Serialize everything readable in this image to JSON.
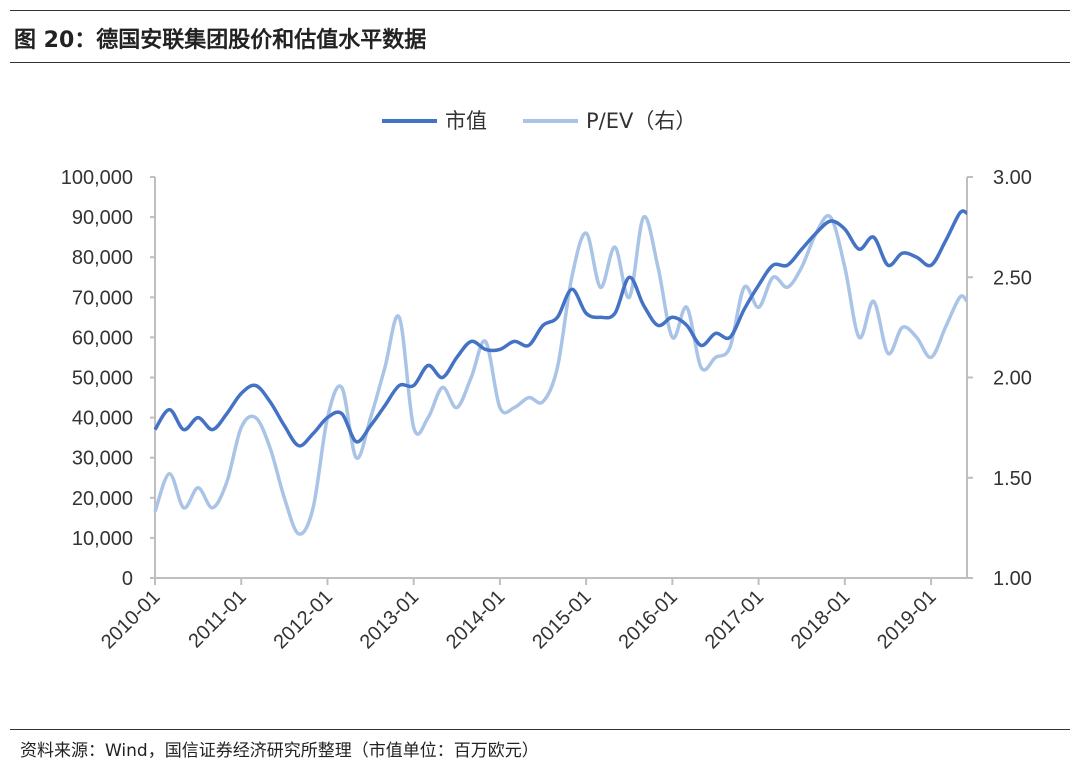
{
  "figure": {
    "title": "图 20：德国安联集团股价和估值水平数据",
    "source": "资料来源：Wind，国信证券经济研究所整理（市值单位：百万欧元）"
  },
  "colors": {
    "series1": "#4472c4",
    "series2": "#a9c4e6",
    "axis": "#bfbfbf"
  },
  "chart_data": {
    "type": "line",
    "x_ticks": [
      "2010-01",
      "2011-01",
      "2012-01",
      "2013-01",
      "2014-01",
      "2015-01",
      "2016-01",
      "2017-01",
      "2018-01",
      "2019-01"
    ],
    "x_range": [
      "2010-01",
      "2019-06"
    ],
    "y_left": {
      "min": 0,
      "max": 100000,
      "ticks": [
        "0",
        "10,000",
        "20,000",
        "30,000",
        "40,000",
        "50,000",
        "60,000",
        "70,000",
        "80,000",
        "90,000",
        "100,000"
      ]
    },
    "y_right": {
      "min": 1.0,
      "max": 3.0,
      "ticks": [
        "1.00",
        "1.50",
        "2.00",
        "2.50",
        "3.00"
      ]
    },
    "grid": false,
    "legend_position": "top-center",
    "series": [
      {
        "name": "市值",
        "axis": "left",
        "x": [
          "2010-01",
          "2010-03",
          "2010-05",
          "2010-07",
          "2010-09",
          "2010-11",
          "2011-01",
          "2011-03",
          "2011-05",
          "2011-07",
          "2011-09",
          "2011-11",
          "2012-01",
          "2012-03",
          "2012-05",
          "2012-07",
          "2012-09",
          "2012-11",
          "2013-01",
          "2013-03",
          "2013-05",
          "2013-07",
          "2013-09",
          "2013-11",
          "2014-01",
          "2014-03",
          "2014-05",
          "2014-07",
          "2014-09",
          "2014-11",
          "2015-01",
          "2015-03",
          "2015-05",
          "2015-07",
          "2015-09",
          "2015-11",
          "2016-01",
          "2016-03",
          "2016-05",
          "2016-07",
          "2016-09",
          "2016-11",
          "2017-01",
          "2017-03",
          "2017-05",
          "2017-07",
          "2017-09",
          "2017-11",
          "2018-01",
          "2018-03",
          "2018-05",
          "2018-07",
          "2018-09",
          "2018-11",
          "2019-01",
          "2019-03",
          "2019-05",
          "2019-06"
        ],
        "values": [
          37000,
          42000,
          37000,
          40000,
          37000,
          41000,
          46000,
          48000,
          44000,
          38000,
          33000,
          36000,
          40000,
          41000,
          34000,
          38000,
          43000,
          48000,
          48000,
          53000,
          50000,
          55000,
          59000,
          57000,
          57000,
          59000,
          58000,
          63000,
          65000,
          72000,
          66000,
          65000,
          66000,
          75000,
          68000,
          63000,
          65000,
          63000,
          58000,
          61000,
          60000,
          67000,
          73000,
          78000,
          78000,
          82000,
          86000,
          89000,
          87000,
          82000,
          85000,
          78000,
          81000,
          80000,
          78000,
          84000,
          91000,
          91000
        ]
      },
      {
        "name": "P/EV（右）",
        "axis": "right",
        "x": [
          "2010-01",
          "2010-03",
          "2010-05",
          "2010-07",
          "2010-09",
          "2010-11",
          "2011-01",
          "2011-03",
          "2011-05",
          "2011-07",
          "2011-09",
          "2011-11",
          "2012-01",
          "2012-03",
          "2012-05",
          "2012-07",
          "2012-09",
          "2012-11",
          "2013-01",
          "2013-03",
          "2013-05",
          "2013-07",
          "2013-09",
          "2013-11",
          "2014-01",
          "2014-03",
          "2014-05",
          "2014-07",
          "2014-09",
          "2014-11",
          "2015-01",
          "2015-03",
          "2015-05",
          "2015-07",
          "2015-09",
          "2015-11",
          "2016-01",
          "2016-03",
          "2016-05",
          "2016-07",
          "2016-09",
          "2016-11",
          "2017-01",
          "2017-03",
          "2017-05",
          "2017-07",
          "2017-09",
          "2017-11",
          "2018-01",
          "2018-03",
          "2018-05",
          "2018-07",
          "2018-09",
          "2018-11",
          "2019-01",
          "2019-03",
          "2019-05",
          "2019-06"
        ],
        "values": [
          1.33,
          1.52,
          1.35,
          1.45,
          1.35,
          1.48,
          1.75,
          1.8,
          1.65,
          1.4,
          1.22,
          1.35,
          1.8,
          1.95,
          1.6,
          1.8,
          2.05,
          2.3,
          1.75,
          1.8,
          1.95,
          1.85,
          2.0,
          2.18,
          1.85,
          1.85,
          1.9,
          1.88,
          2.05,
          2.5,
          2.72,
          2.45,
          2.65,
          2.4,
          2.8,
          2.55,
          2.2,
          2.35,
          2.05,
          2.1,
          2.15,
          2.45,
          2.35,
          2.5,
          2.45,
          2.55,
          2.72,
          2.8,
          2.55,
          2.2,
          2.38,
          2.12,
          2.25,
          2.2,
          2.1,
          2.25,
          2.4,
          2.38
        ]
      }
    ]
  }
}
